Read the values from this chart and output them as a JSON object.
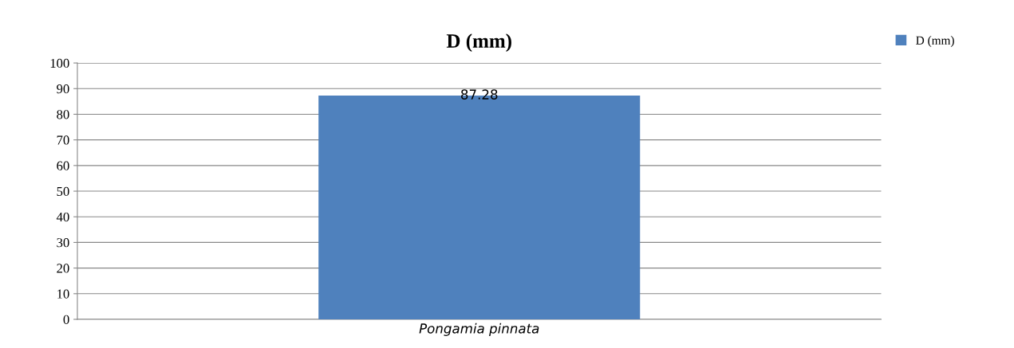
{
  "chart_data": {
    "type": "bar",
    "title": "D (mm)",
    "categories": [
      "Pongamia pinnata"
    ],
    "series": [
      {
        "name": "D (mm)",
        "color": "#4f81bd",
        "values": [
          87.28
        ]
      }
    ],
    "ylim": [
      0,
      100
    ],
    "yticks": [
      0,
      10,
      20,
      30,
      40,
      50,
      60,
      70,
      80,
      90,
      100
    ],
    "grid": "y",
    "legend": "top right",
    "data_labels": true
  }
}
